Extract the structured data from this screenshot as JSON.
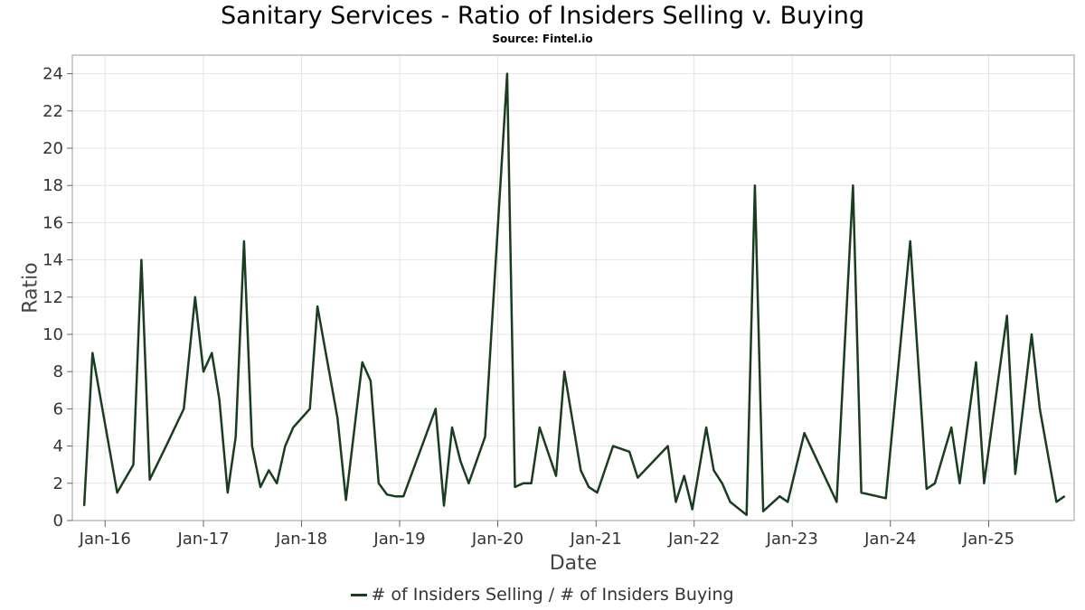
{
  "chart_data": {
    "type": "line",
    "title": "Sanitary Services - Ratio of Insiders Selling v. Buying",
    "subtitle": "Source: Fintel.io",
    "xlabel": "Date",
    "ylabel": "Ratio",
    "xlim": [
      "2015-09-01",
      "2025-11-15"
    ],
    "ylim": [
      0,
      25
    ],
    "x_ticks": [
      {
        "label": "Jan-16",
        "date": "2016-01-01"
      },
      {
        "label": "Jan-17",
        "date": "2017-01-01"
      },
      {
        "label": "Jan-18",
        "date": "2018-01-01"
      },
      {
        "label": "Jan-19",
        "date": "2019-01-01"
      },
      {
        "label": "Jan-20",
        "date": "2020-01-01"
      },
      {
        "label": "Jan-21",
        "date": "2021-01-01"
      },
      {
        "label": "Jan-22",
        "date": "2022-01-01"
      },
      {
        "label": "Jan-23",
        "date": "2023-01-01"
      },
      {
        "label": "Jan-24",
        "date": "2024-01-01"
      },
      {
        "label": "Jan-25",
        "date": "2025-01-01"
      }
    ],
    "y_ticks": [
      0,
      2,
      4,
      6,
      8,
      10,
      12,
      14,
      16,
      18,
      20,
      22,
      24
    ],
    "grid": true,
    "legend_position": "bottom-center",
    "series": [
      {
        "name": "# of Insiders Selling / # of Insiders Buying",
        "color": "#1a3d1f",
        "points": [
          [
            "2015-10-15",
            0.8
          ],
          [
            "2015-11-15",
            9.0
          ],
          [
            "2016-02-15",
            1.5
          ],
          [
            "2016-04-15",
            3.0
          ],
          [
            "2016-05-15",
            14.0
          ],
          [
            "2016-06-15",
            2.2
          ],
          [
            "2016-08-15",
            4.0
          ],
          [
            "2016-10-20",
            6.0
          ],
          [
            "2016-12-01",
            12.0
          ],
          [
            "2017-01-01",
            8.0
          ],
          [
            "2017-02-01",
            9.0
          ],
          [
            "2017-03-01",
            6.5
          ],
          [
            "2017-04-01",
            1.5
          ],
          [
            "2017-05-01",
            4.5
          ],
          [
            "2017-06-01",
            15.0
          ],
          [
            "2017-07-01",
            4.0
          ],
          [
            "2017-08-01",
            1.8
          ],
          [
            "2017-09-01",
            2.7
          ],
          [
            "2017-10-01",
            2.0
          ],
          [
            "2017-11-01",
            4.0
          ],
          [
            "2017-12-01",
            5.0
          ],
          [
            "2018-02-01",
            6.0
          ],
          [
            "2018-03-01",
            11.5
          ],
          [
            "2018-05-15",
            5.5
          ],
          [
            "2018-06-15",
            1.1
          ],
          [
            "2018-08-15",
            8.5
          ],
          [
            "2018-09-15",
            7.5
          ],
          [
            "2018-10-15",
            2.0
          ],
          [
            "2018-11-15",
            1.4
          ],
          [
            "2018-12-15",
            1.3
          ],
          [
            "2019-01-15",
            1.3
          ],
          [
            "2019-05-15",
            6.0
          ],
          [
            "2019-06-15",
            0.8
          ],
          [
            "2019-07-15",
            5.0
          ],
          [
            "2019-08-15",
            3.2
          ],
          [
            "2019-09-15",
            2.0
          ],
          [
            "2019-11-15",
            4.5
          ],
          [
            "2020-02-05",
            24.0
          ],
          [
            "2020-03-05",
            1.8
          ],
          [
            "2020-04-05",
            2.0
          ],
          [
            "2020-05-05",
            2.0
          ],
          [
            "2020-06-05",
            5.0
          ],
          [
            "2020-08-05",
            2.4
          ],
          [
            "2020-09-05",
            8.0
          ],
          [
            "2020-11-05",
            2.7
          ],
          [
            "2020-12-05",
            1.8
          ],
          [
            "2021-01-05",
            1.5
          ],
          [
            "2021-03-05",
            4.0
          ],
          [
            "2021-05-05",
            3.7
          ],
          [
            "2021-06-05",
            2.3
          ],
          [
            "2021-09-25",
            4.0
          ],
          [
            "2021-10-25",
            1.0
          ],
          [
            "2021-11-25",
            2.4
          ],
          [
            "2021-12-25",
            0.6
          ],
          [
            "2022-02-15",
            5.0
          ],
          [
            "2022-03-15",
            2.7
          ],
          [
            "2022-04-15",
            2.0
          ],
          [
            "2022-05-15",
            1.0
          ],
          [
            "2022-07-15",
            0.3
          ],
          [
            "2022-08-15",
            18.0
          ],
          [
            "2022-09-15",
            0.5
          ],
          [
            "2022-11-15",
            1.3
          ],
          [
            "2022-12-15",
            1.0
          ],
          [
            "2023-02-15",
            4.7
          ],
          [
            "2023-06-15",
            1.0
          ],
          [
            "2023-08-15",
            18.0
          ],
          [
            "2023-09-15",
            1.5
          ],
          [
            "2023-12-15",
            1.2
          ],
          [
            "2024-03-15",
            15.0
          ],
          [
            "2024-05-15",
            1.7
          ],
          [
            "2024-06-15",
            2.0
          ],
          [
            "2024-08-15",
            5.0
          ],
          [
            "2024-09-15",
            2.0
          ],
          [
            "2024-11-15",
            8.5
          ],
          [
            "2024-12-15",
            2.0
          ],
          [
            "2025-03-10",
            11.0
          ],
          [
            "2025-04-10",
            2.5
          ],
          [
            "2025-06-10",
            10.0
          ],
          [
            "2025-07-10",
            6.0
          ],
          [
            "2025-09-10",
            1.0
          ],
          [
            "2025-10-10",
            1.3
          ]
        ]
      }
    ]
  }
}
